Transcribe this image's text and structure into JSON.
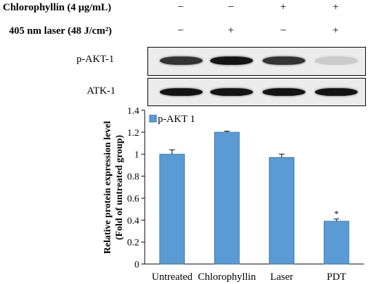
{
  "conditions": {
    "chlorophyllin": {
      "label": "Chlorophyllin (4 μg/mL)",
      "signs": [
        "−",
        "−",
        "+",
        "+"
      ]
    },
    "laser": {
      "label": "405 nm laser (48 J/cm²)",
      "signs": [
        "−",
        "+",
        "−",
        "+"
      ]
    }
  },
  "blots": [
    {
      "label": "p-AKT-1",
      "band_intensity": [
        0.85,
        1.0,
        0.85,
        0.15
      ]
    },
    {
      "label": "ATK-1",
      "band_intensity": [
        1.0,
        1.0,
        1.0,
        1.0
      ]
    }
  ],
  "chart_data": {
    "type": "bar",
    "categories": [
      "Untreated",
      "Chlorophyllin",
      "Laser",
      "PDT"
    ],
    "series": [
      {
        "name": "p-AKT 1",
        "values": [
          1.0,
          1.2,
          0.97,
          0.39
        ],
        "errors": [
          0.04,
          0.01,
          0.03,
          0.02
        ],
        "color": "#5b9bd5"
      }
    ],
    "annotations": [
      "",
      "",
      "",
      "*"
    ],
    "ylabel_line1": "Relative protein expression level",
    "ylabel_line2": "(Fold of untreated group)",
    "ylim": [
      0,
      1.4
    ],
    "yticks": [
      "0",
      "0.2",
      "0.4",
      "0.6",
      "0.8",
      "1",
      "1.2",
      "1.4"
    ],
    "grid": false,
    "legend_position": "top-left"
  }
}
